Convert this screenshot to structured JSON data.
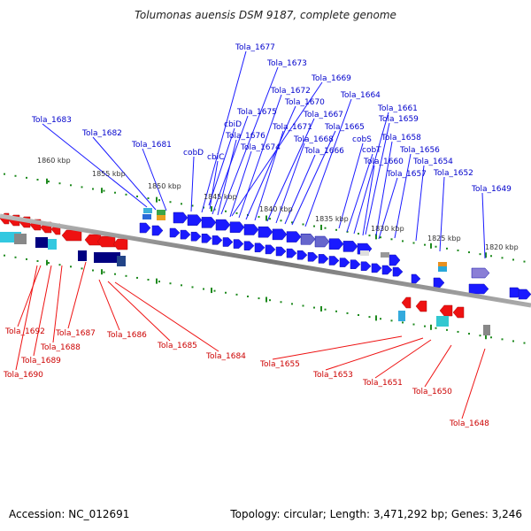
{
  "title": "Tolumonas auensis DSM 9187, complete genome",
  "footer": {
    "accession": "Accession: NC_012691",
    "stats": "Topology: circular; Length: 3,471,292 bp; Genes: 3,246"
  },
  "colors": {
    "forward": "#1a1aff",
    "reverse": "#ee1111",
    "backbone": "#888888",
    "tick": "#1e8a1e"
  },
  "kbp_labels": [
    {
      "text": "1860 kbp"
    },
    {
      "text": "1855 kbp"
    },
    {
      "text": "1850 kbp"
    },
    {
      "text": "1845 kbp"
    },
    {
      "text": "1840 kbp"
    },
    {
      "text": "1835 kbp"
    },
    {
      "text": "1830 kbp"
    },
    {
      "text": "1825 kbp"
    },
    {
      "text": "1820 kbp"
    }
  ],
  "forward_labels": [
    {
      "text": "Tola_1677"
    },
    {
      "text": "Tola_1673"
    },
    {
      "text": "Tola_1669"
    },
    {
      "text": "Tola_1672"
    },
    {
      "text": "Tola_1664"
    },
    {
      "text": "Tola_1670"
    },
    {
      "text": "Tola_1661"
    },
    {
      "text": "Tola_1675"
    },
    {
      "text": "Tola_1667"
    },
    {
      "text": "Tola_1659"
    },
    {
      "text": "Tola_1683"
    },
    {
      "text": "cbiD"
    },
    {
      "text": "Tola_1671"
    },
    {
      "text": "Tola_1665"
    },
    {
      "text": "Tola_1682"
    },
    {
      "text": "Tola_1676"
    },
    {
      "text": "Tola_1668"
    },
    {
      "text": "cobS"
    },
    {
      "text": "Tola_1658"
    },
    {
      "text": "Tola_1681"
    },
    {
      "text": "Tola_1674"
    },
    {
      "text": "Tola_1666"
    },
    {
      "text": "cobT"
    },
    {
      "text": "Tola_1656"
    },
    {
      "text": "cobD"
    },
    {
      "text": "cbiC"
    },
    {
      "text": "Tola_1660"
    },
    {
      "text": "Tola_1654"
    },
    {
      "text": "Tola_1657"
    },
    {
      "text": "Tola_1652"
    },
    {
      "text": "Tola_1649"
    }
  ],
  "reverse_labels": [
    {
      "text": "Tola_1692"
    },
    {
      "text": "Tola_1687"
    },
    {
      "text": "Tola_1688"
    },
    {
      "text": "Tola_1686"
    },
    {
      "text": "Tola_1689"
    },
    {
      "text": "Tola_1685"
    },
    {
      "text": "Tola_1690"
    },
    {
      "text": "Tola_1684"
    },
    {
      "text": "Tola_1655"
    },
    {
      "text": "Tola_1653"
    },
    {
      "text": "Tola_1651"
    },
    {
      "text": "Tola_1650"
    },
    {
      "text": "Tola_1648"
    }
  ]
}
